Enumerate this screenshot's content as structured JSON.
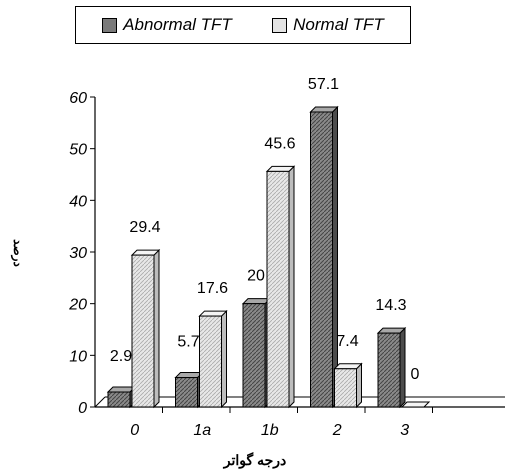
{
  "chart_data": {
    "type": "bar",
    "title": "",
    "xlabel": "درجه گواتر",
    "ylabel": "درصد",
    "categories": [
      "0",
      "1a",
      "1b",
      "2",
      "3"
    ],
    "series": [
      {
        "name": "Abnormal TFT",
        "values": [
          2.9,
          5.7,
          20,
          57.1,
          14.3
        ],
        "color": "#7a7a7a"
      },
      {
        "name": "Normal TFT",
        "values": [
          29.4,
          17.6,
          45.6,
          7.4,
          0
        ],
        "color": "#e3e3e3"
      }
    ],
    "data_labels": [
      [
        "2.9",
        "5.7",
        "20",
        "57.1",
        "14.3"
      ],
      [
        "29.4",
        "17.6",
        "45.6",
        "7.4",
        "0"
      ]
    ],
    "ylim": [
      0,
      60
    ],
    "yticks": [
      "0",
      "10",
      "20",
      "30",
      "40",
      "50",
      "60"
    ],
    "legend_position": "top",
    "grid": false,
    "style": "3d-bars"
  }
}
